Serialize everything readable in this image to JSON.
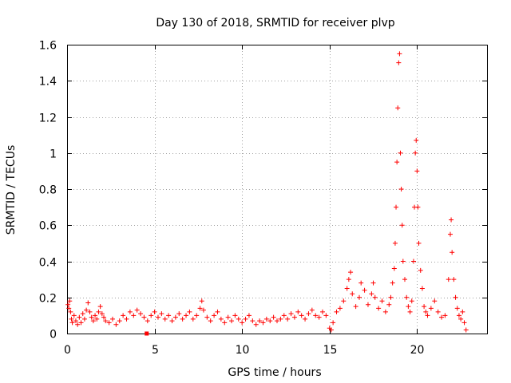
{
  "chart_data": {
    "type": "scatter",
    "title": "Day 130 of 2018, SRMTID for receiver plvp",
    "xlabel": "GPS time / hours",
    "ylabel": "SRMTID / TECUs",
    "xlim": [
      0,
      24
    ],
    "ylim": [
      0,
      1.6
    ],
    "grid": true,
    "marker": "plus",
    "color": "#ff0000",
    "x_ticks": [
      0,
      5,
      10,
      15,
      20
    ],
    "x_tick_labels": [
      "0",
      "5",
      "10",
      "15",
      "20"
    ],
    "y_ticks": [
      0,
      0.2,
      0.4,
      0.6,
      0.8,
      1.0,
      1.2,
      1.4,
      1.6
    ],
    "y_tick_labels": [
      "0",
      "0.2",
      "0.4",
      "0.6",
      "0.8",
      "1",
      "1.2",
      "1.4",
      "1.6"
    ],
    "series": [
      {
        "name": "SRMTID",
        "points": [
          [
            0.05,
            0.16
          ],
          [
            0.1,
            0.14
          ],
          [
            0.15,
            0.18
          ],
          [
            0.2,
            0.12
          ],
          [
            0.25,
            0.08
          ],
          [
            0.3,
            0.06
          ],
          [
            0.4,
            0.1
          ],
          [
            0.5,
            0.07
          ],
          [
            0.6,
            0.05
          ],
          [
            0.7,
            0.09
          ],
          [
            0.8,
            0.06
          ],
          [
            0.9,
            0.11
          ],
          [
            1.0,
            0.08
          ],
          [
            1.1,
            0.13
          ],
          [
            1.2,
            0.17
          ],
          [
            1.3,
            0.12
          ],
          [
            1.4,
            0.09
          ],
          [
            1.5,
            0.07
          ],
          [
            1.6,
            0.1
          ],
          [
            1.7,
            0.08
          ],
          [
            1.8,
            0.12
          ],
          [
            1.9,
            0.15
          ],
          [
            2.0,
            0.11
          ],
          [
            2.1,
            0.09
          ],
          [
            2.2,
            0.07
          ],
          [
            2.4,
            0.06
          ],
          [
            2.6,
            0.08
          ],
          [
            2.8,
            0.05
          ],
          [
            3.0,
            0.07
          ],
          [
            3.2,
            0.1
          ],
          [
            3.4,
            0.08
          ],
          [
            3.6,
            0.12
          ],
          [
            3.8,
            0.1
          ],
          [
            4.0,
            0.13
          ],
          [
            4.2,
            0.11
          ],
          [
            4.4,
            0.09
          ],
          [
            4.6,
            0.07
          ],
          [
            4.8,
            0.1
          ],
          [
            5.0,
            0.12
          ],
          [
            5.2,
            0.09
          ],
          [
            5.4,
            0.11
          ],
          [
            5.6,
            0.08
          ],
          [
            5.8,
            0.1
          ],
          [
            6.0,
            0.07
          ],
          [
            6.2,
            0.09
          ],
          [
            6.4,
            0.11
          ],
          [
            6.6,
            0.08
          ],
          [
            6.8,
            0.1
          ],
          [
            7.0,
            0.12
          ],
          [
            7.2,
            0.08
          ],
          [
            7.4,
            0.1
          ],
          [
            7.6,
            0.14
          ],
          [
            7.7,
            0.18
          ],
          [
            7.8,
            0.13
          ],
          [
            8.0,
            0.09
          ],
          [
            8.2,
            0.07
          ],
          [
            8.4,
            0.1
          ],
          [
            8.6,
            0.12
          ],
          [
            8.8,
            0.08
          ],
          [
            9.0,
            0.06
          ],
          [
            9.2,
            0.09
          ],
          [
            9.4,
            0.07
          ],
          [
            9.6,
            0.1
          ],
          [
            9.8,
            0.08
          ],
          [
            10.0,
            0.06
          ],
          [
            10.2,
            0.08
          ],
          [
            10.4,
            0.1
          ],
          [
            10.6,
            0.07
          ],
          [
            10.8,
            0.05
          ],
          [
            11.0,
            0.07
          ],
          [
            11.2,
            0.06
          ],
          [
            11.4,
            0.08
          ],
          [
            11.6,
            0.07
          ],
          [
            11.8,
            0.09
          ],
          [
            12.0,
            0.07
          ],
          [
            12.2,
            0.08
          ],
          [
            12.4,
            0.1
          ],
          [
            12.6,
            0.08
          ],
          [
            12.8,
            0.11
          ],
          [
            13.0,
            0.09
          ],
          [
            13.2,
            0.12
          ],
          [
            13.4,
            0.1
          ],
          [
            13.6,
            0.08
          ],
          [
            13.8,
            0.11
          ],
          [
            14.0,
            0.13
          ],
          [
            14.2,
            0.1
          ],
          [
            14.4,
            0.09
          ],
          [
            14.6,
            0.12
          ],
          [
            14.8,
            0.1
          ],
          [
            15.0,
            0.03
          ],
          [
            15.1,
            0.02
          ],
          [
            15.2,
            0.06
          ],
          [
            15.4,
            0.12
          ],
          [
            15.6,
            0.14
          ],
          [
            15.8,
            0.18
          ],
          [
            16.0,
            0.25
          ],
          [
            16.1,
            0.3
          ],
          [
            16.2,
            0.34
          ],
          [
            16.3,
            0.22
          ],
          [
            16.5,
            0.15
          ],
          [
            16.7,
            0.2
          ],
          [
            16.8,
            0.28
          ],
          [
            17.0,
            0.24
          ],
          [
            17.2,
            0.16
          ],
          [
            17.4,
            0.22
          ],
          [
            17.5,
            0.28
          ],
          [
            17.6,
            0.2
          ],
          [
            17.8,
            0.14
          ],
          [
            18.0,
            0.18
          ],
          [
            18.2,
            0.12
          ],
          [
            18.4,
            0.16
          ],
          [
            18.5,
            0.2
          ],
          [
            18.6,
            0.28
          ],
          [
            18.7,
            0.36
          ],
          [
            18.75,
            0.5
          ],
          [
            18.8,
            0.7
          ],
          [
            18.85,
            0.95
          ],
          [
            18.9,
            1.25
          ],
          [
            18.95,
            1.5
          ],
          [
            19.0,
            1.55
          ],
          [
            19.05,
            1.0
          ],
          [
            19.1,
            0.8
          ],
          [
            19.15,
            0.6
          ],
          [
            19.2,
            0.4
          ],
          [
            19.3,
            0.3
          ],
          [
            19.4,
            0.2
          ],
          [
            19.5,
            0.15
          ],
          [
            19.6,
            0.12
          ],
          [
            19.7,
            0.18
          ],
          [
            19.8,
            0.4
          ],
          [
            19.85,
            0.7
          ],
          [
            19.9,
            1.0
          ],
          [
            19.95,
            1.07
          ],
          [
            20.0,
            0.9
          ],
          [
            20.05,
            0.7
          ],
          [
            20.1,
            0.5
          ],
          [
            20.2,
            0.35
          ],
          [
            20.3,
            0.25
          ],
          [
            20.4,
            0.15
          ],
          [
            20.5,
            0.12
          ],
          [
            20.6,
            0.1
          ],
          [
            20.8,
            0.14
          ],
          [
            21.0,
            0.18
          ],
          [
            21.2,
            0.12
          ],
          [
            21.4,
            0.09
          ],
          [
            21.6,
            0.1
          ],
          [
            21.8,
            0.3
          ],
          [
            21.9,
            0.55
          ],
          [
            21.95,
            0.63
          ],
          [
            22.0,
            0.45
          ],
          [
            22.1,
            0.3
          ],
          [
            22.2,
            0.2
          ],
          [
            22.3,
            0.14
          ],
          [
            22.4,
            0.1
          ],
          [
            22.5,
            0.08
          ],
          [
            22.6,
            0.12
          ],
          [
            22.7,
            0.06
          ],
          [
            22.8,
            0.02
          ]
        ]
      }
    ],
    "outlier_marker": {
      "x": 4.55,
      "y": 0.0,
      "shape": "square"
    }
  }
}
